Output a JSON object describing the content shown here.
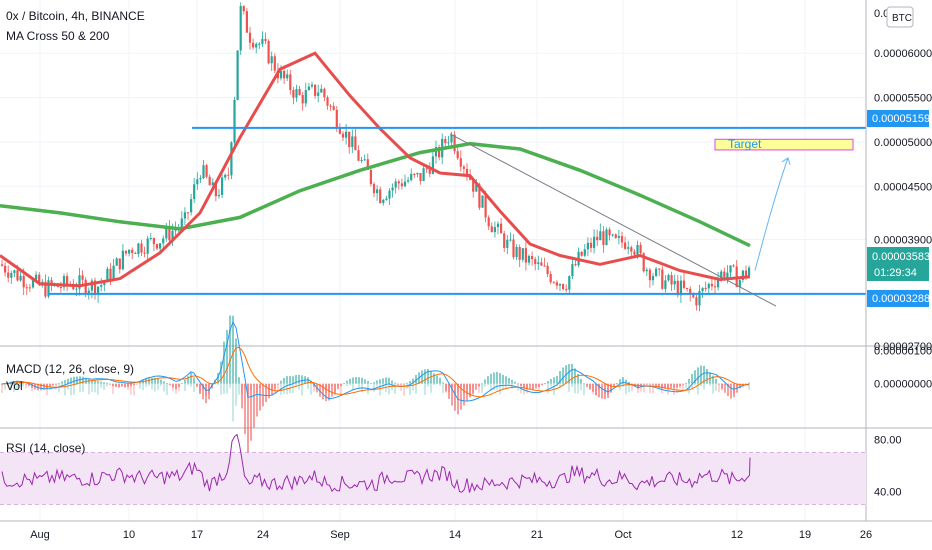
{
  "header": {
    "title": "0x / Bitcoin, 4h, BINANCE",
    "indicator": "MA Cross 50 & 200",
    "currency_button": "BTC"
  },
  "colors": {
    "bull": "#26a69a",
    "bear": "#ef5350",
    "ma50": "#e84d4d",
    "ma200": "#4caf50",
    "level": "#2196f3",
    "trend": "#787b86",
    "macd": "#2196f3",
    "signal": "#ff6d00",
    "rsi": "#9c27b0",
    "rsi_band": "#f3e5f5",
    "target_fill": "#ffff99",
    "target_border": "#e040fb"
  },
  "chart_data": {
    "type": "candlestick",
    "interval": "4h",
    "x_ticks": [
      "Aug",
      "10",
      "17",
      "24",
      "Sep",
      "14",
      "21",
      "Oct",
      "12",
      "19",
      "26"
    ],
    "y_ticks": [
      "0.00006000",
      "0.00005500",
      "0.00005000",
      "0.00004500",
      "0.00003900",
      "0.00002700"
    ],
    "y_top_label": "0.0",
    "ylim": [
      2.7e-05,
      6.6e-05
    ],
    "current_price": "0.00003583",
    "countdown": "01:29:34",
    "resistance": "0.00005159",
    "support": "0.00003288",
    "annotations": {
      "target_label": "Target"
    },
    "ma50": [
      [
        0,
        3.72e-05
      ],
      [
        40,
        3.4e-05
      ],
      [
        80,
        3.38e-05
      ],
      [
        120,
        3.46e-05
      ],
      [
        160,
        3.75e-05
      ],
      [
        200,
        4.2e-05
      ],
      [
        240,
        5.05e-05
      ],
      [
        280,
        5.82e-05
      ],
      [
        315,
        6e-05
      ],
      [
        350,
        5.52e-05
      ],
      [
        380,
        5.15e-05
      ],
      [
        410,
        4.82e-05
      ],
      [
        440,
        4.65e-05
      ],
      [
        470,
        4.62e-05
      ],
      [
        500,
        4.22e-05
      ],
      [
        530,
        3.85e-05
      ],
      [
        560,
        3.72e-05
      ],
      [
        600,
        3.62e-05
      ],
      [
        640,
        3.72e-05
      ],
      [
        680,
        3.55e-05
      ],
      [
        720,
        3.45e-05
      ],
      [
        750,
        3.48e-05
      ]
    ],
    "ma200": [
      [
        0,
        4.28e-05
      ],
      [
        60,
        4.2e-05
      ],
      [
        120,
        4.1e-05
      ],
      [
        180,
        4.02e-05
      ],
      [
        240,
        4.15e-05
      ],
      [
        300,
        4.45e-05
      ],
      [
        360,
        4.68e-05
      ],
      [
        420,
        4.88e-05
      ],
      [
        470,
        4.98e-05
      ],
      [
        520,
        4.92e-05
      ],
      [
        580,
        4.68e-05
      ],
      [
        640,
        4.4e-05
      ],
      [
        700,
        4.1e-05
      ],
      [
        750,
        3.83e-05
      ]
    ],
    "macd": {
      "name": "MACD (12, 26, close, 9)",
      "y_ticks": [
        "0.00000100",
        "0.00000000"
      ],
      "ylim": [
        -1.3e-06,
        1.1e-06
      ]
    },
    "volume_label": "Vol",
    "rsi": {
      "name": "RSI (14, close)",
      "y_ticks": [
        "80.00",
        "40.00"
      ],
      "ylim": [
        18,
        88
      ],
      "band": [
        30,
        70
      ]
    }
  }
}
